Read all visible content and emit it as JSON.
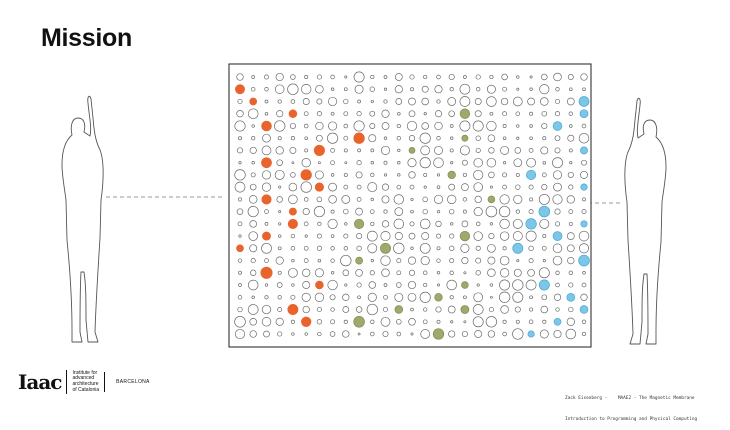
{
  "slide": {
    "title": "Mission"
  },
  "figure": {
    "colors": {
      "outline": "#6b6b6b",
      "orange": "#e8642c",
      "green": "#9eaa6b",
      "blue": "#7cc6e8"
    }
  },
  "logo": {
    "mark": "Iaac",
    "institute_lines": [
      "Institute for",
      "advanced",
      "architecture",
      "of Catalonia"
    ],
    "city": "BARCELONA"
  },
  "credits": {
    "line1": "Zack Eisenberg -    MAAE2 - The Magnetic Membrane",
    "line2": "Introduction to Programming and Physical Computing"
  }
}
